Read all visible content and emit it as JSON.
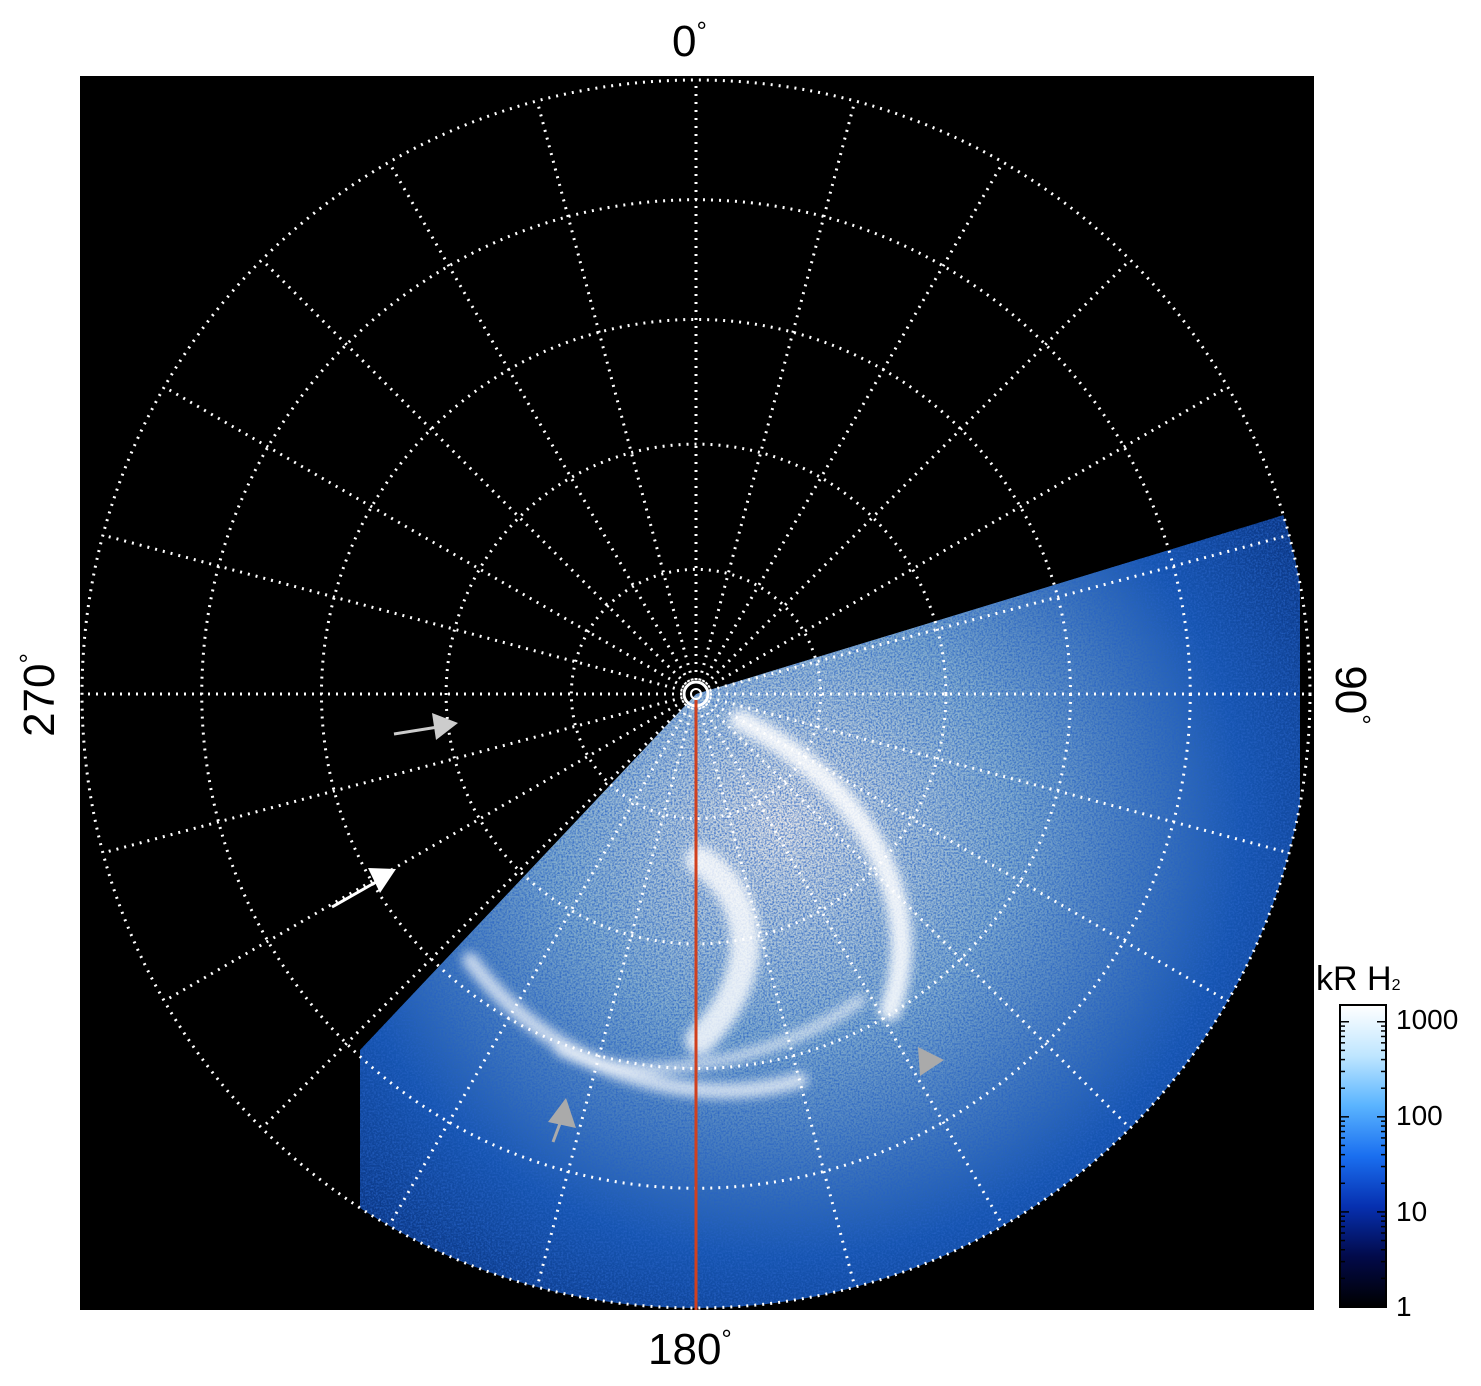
{
  "chart_data": {
    "type": "heatmap",
    "projection": "polar",
    "azimuth_labels": [
      {
        "value": "0",
        "unit": "°"
      },
      {
        "value": "90",
        "unit": "°"
      },
      {
        "value": "180",
        "unit": "°"
      },
      {
        "value": "270",
        "unit": "°"
      }
    ],
    "colorbar": {
      "title": "kR H",
      "title_subscript": "2",
      "scale": "log",
      "ticks": [
        "1",
        "10",
        "100",
        "1000"
      ],
      "range": [
        1,
        1500
      ],
      "colormap": [
        "#000000",
        "#020a4a",
        "#0630b0",
        "#1a6ff0",
        "#5ab4ff",
        "#bfe6ff",
        "#ffffff"
      ]
    },
    "grid": true,
    "background_color": "#000000",
    "meridian_line_color": "#d0401e",
    "annotations": [
      {
        "type": "arrow",
        "color": "#cccccc"
      },
      {
        "type": "arrow",
        "color": "#ffffff"
      },
      {
        "type": "arrowhead",
        "color": "#aaaaaa"
      },
      {
        "type": "arrowhead",
        "color": "#aaaaaa"
      }
    ]
  }
}
